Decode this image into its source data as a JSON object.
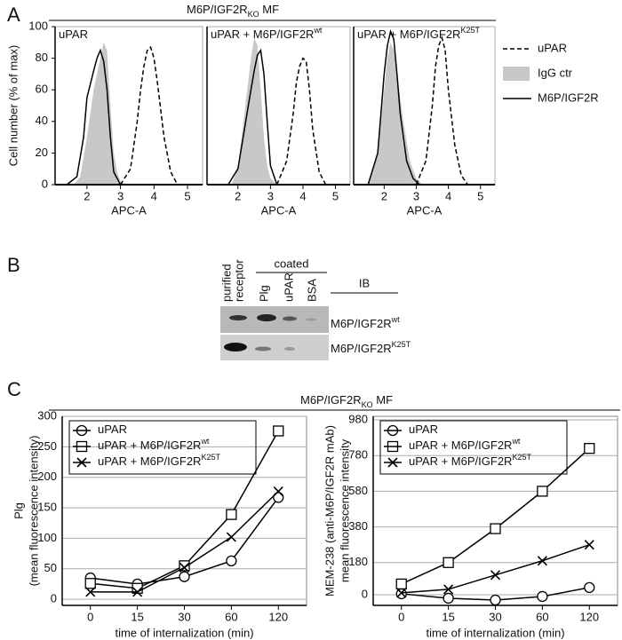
{
  "panel_a": {
    "label": "A",
    "header": {
      "text": "M6P/IGF2R",
      "subscript": "KO",
      "suffix": " MF"
    }
  },
  "panel_b": {
    "label": "B",
    "group_label": "coated",
    "ib_label": "IB",
    "column_labels": [
      [
        "purified",
        "receptor"
      ],
      [
        "Plg"
      ],
      [
        "uPAR"
      ],
      [
        "BSA"
      ]
    ],
    "rows": [
      {
        "text": "M6P/IGF2R",
        "superscript": "wt"
      },
      {
        "text": "M6P/IGF2R",
        "superscript": "K25T"
      }
    ]
  },
  "panel_c": {
    "label": "C",
    "header": {
      "text": "M6P/IGF2R",
      "subscript": "KO",
      "suffix": " MF"
    }
  },
  "chart_data": [
    {
      "type": "histogram-overlay",
      "title": {
        "text": "uPAR"
      },
      "xlabel": "APC-A",
      "ylabel": "Cell number (% of max)",
      "xlim": [
        1.05,
        5.45
      ],
      "ylim": [
        0,
        100
      ],
      "xticks": [
        2,
        3,
        4,
        5
      ],
      "yticks": [
        0,
        20,
        40,
        60,
        80,
        100
      ],
      "series": [
        {
          "name": "IgG ctr",
          "color": "#c8c8c8",
          "style": "filled",
          "x": [
            1.6,
            1.8,
            2.0,
            2.2,
            2.4,
            2.5,
            2.6,
            2.7,
            2.8,
            2.9,
            3.0,
            3.2
          ],
          "values": [
            0,
            5,
            30,
            60,
            80,
            90,
            85,
            50,
            20,
            8,
            2,
            0
          ]
        },
        {
          "name": "M6P/IGF2R",
          "color": "#000000",
          "style": "solid",
          "x": [
            1.4,
            1.7,
            1.9,
            2.0,
            2.2,
            2.3,
            2.4,
            2.5,
            2.6,
            2.7,
            2.8,
            3.0
          ],
          "values": [
            0,
            5,
            30,
            55,
            72,
            80,
            85,
            78,
            60,
            30,
            8,
            0
          ]
        },
        {
          "name": "uPAR",
          "color": "#000000",
          "style": "dashed",
          "x": [
            3.0,
            3.3,
            3.5,
            3.6,
            3.7,
            3.8,
            3.9,
            4.0,
            4.1,
            4.3,
            4.5,
            4.7
          ],
          "values": [
            0,
            10,
            40,
            60,
            75,
            85,
            87,
            80,
            65,
            30,
            8,
            0
          ]
        }
      ]
    },
    {
      "type": "histogram-overlay",
      "title": {
        "text": "uPAR +  M6P/IGF2R",
        "superscript": "wt"
      },
      "xlabel": "APC-A",
      "xlim": [
        1.05,
        5.45
      ],
      "ylim": [
        0,
        100
      ],
      "xticks": [
        2,
        3,
        4,
        5
      ],
      "series": [
        {
          "color": "#c8c8c8",
          "style": "filled",
          "x": [
            1.8,
            2.0,
            2.2,
            2.4,
            2.5,
            2.6,
            2.7,
            2.8,
            2.9,
            3.0,
            3.2
          ],
          "values": [
            0,
            10,
            45,
            80,
            93,
            88,
            60,
            30,
            12,
            4,
            0
          ]
        },
        {
          "color": "#000000",
          "style": "solid",
          "x": [
            1.7,
            2.0,
            2.2,
            2.4,
            2.5,
            2.6,
            2.7,
            2.8,
            2.9,
            3.0,
            3.2
          ],
          "values": [
            0,
            10,
            35,
            60,
            72,
            82,
            85,
            70,
            40,
            12,
            0
          ]
        },
        {
          "color": "#000000",
          "style": "dashed",
          "x": [
            3.2,
            3.5,
            3.7,
            3.8,
            3.9,
            4.0,
            4.1,
            4.2,
            4.3,
            4.5,
            4.7
          ],
          "values": [
            0,
            15,
            45,
            65,
            75,
            80,
            78,
            60,
            35,
            8,
            0
          ]
        }
      ]
    },
    {
      "type": "histogram-overlay",
      "title": {
        "text": "uPAR + M6P/IGF2R",
        "superscript": "K25T"
      },
      "xlabel": "APC-A",
      "xlim": [
        1.05,
        5.45
      ],
      "ylim": [
        0,
        100
      ],
      "xticks": [
        2,
        3,
        4,
        5
      ],
      "series": [
        {
          "color": "#c8c8c8",
          "style": "filled",
          "x": [
            1.5,
            1.8,
            2.0,
            2.1,
            2.2,
            2.3,
            2.4,
            2.6,
            2.8,
            3.0,
            3.2
          ],
          "values": [
            0,
            20,
            60,
            80,
            90,
            85,
            70,
            40,
            15,
            4,
            0
          ]
        },
        {
          "color": "#000000",
          "style": "solid",
          "x": [
            1.5,
            1.8,
            2.0,
            2.1,
            2.2,
            2.3,
            2.4,
            2.5,
            2.7,
            2.9,
            3.1
          ],
          "values": [
            0,
            20,
            70,
            88,
            97,
            92,
            70,
            45,
            15,
            4,
            0
          ]
        },
        {
          "color": "#000000",
          "style": "dashed",
          "x": [
            3.0,
            3.3,
            3.5,
            3.6,
            3.7,
            3.8,
            3.9,
            4.0,
            4.2,
            4.4,
            4.6
          ],
          "values": [
            0,
            15,
            50,
            75,
            88,
            93,
            85,
            60,
            25,
            6,
            0
          ]
        }
      ]
    },
    {
      "type": "line",
      "ylabel": [
        "Plg",
        "(mean fluorescence intensity)"
      ],
      "xlabel": "time of internalization (min)",
      "categories": [
        "0",
        "15",
        "30",
        "60",
        "120"
      ],
      "ylim": [
        -10,
        300
      ],
      "yticks": [
        0,
        50,
        100,
        150,
        200,
        250,
        300
      ],
      "grid": true,
      "series": [
        {
          "name": "uPAR",
          "marker": "circle",
          "color": "#000000",
          "values": [
            35,
            25,
            37,
            63,
            167
          ]
        },
        {
          "name": "uPAR + M6P/IGF2R",
          "superscript": "wt",
          "marker": "square",
          "color": "#000000",
          "values": [
            26,
            18,
            55,
            139,
            276
          ]
        },
        {
          "name": "uPAR + M6P/IGF2R",
          "superscript": "K25T",
          "marker": "x",
          "color": "#000000",
          "values": [
            12,
            12,
            52,
            102,
            177
          ]
        }
      ]
    },
    {
      "type": "line",
      "ylabel": [
        "MEM-238 (anti-M6P/IGF2R mAb)",
        "mean fluorescence intensity"
      ],
      "xlabel": "time of internalization (min)",
      "categories": [
        "0",
        "15",
        "30",
        "60",
        "120"
      ],
      "ylim": [
        -60,
        1000
      ],
      "yticks": [
        0,
        180,
        380,
        580,
        780,
        980
      ],
      "grid": true,
      "series": [
        {
          "name": "uPAR",
          "marker": "circle",
          "color": "#000000",
          "values": [
            5,
            -20,
            -30,
            -10,
            40
          ]
        },
        {
          "name": "uPAR + M6P/IGF2R",
          "superscript": "wt",
          "marker": "square",
          "color": "#000000",
          "values": [
            60,
            180,
            370,
            580,
            820
          ]
        },
        {
          "name": "uPAR + M6P/IGF2R",
          "superscript": "K25T",
          "marker": "x",
          "color": "#000000",
          "values": [
            10,
            30,
            110,
            190,
            280
          ]
        }
      ]
    }
  ]
}
